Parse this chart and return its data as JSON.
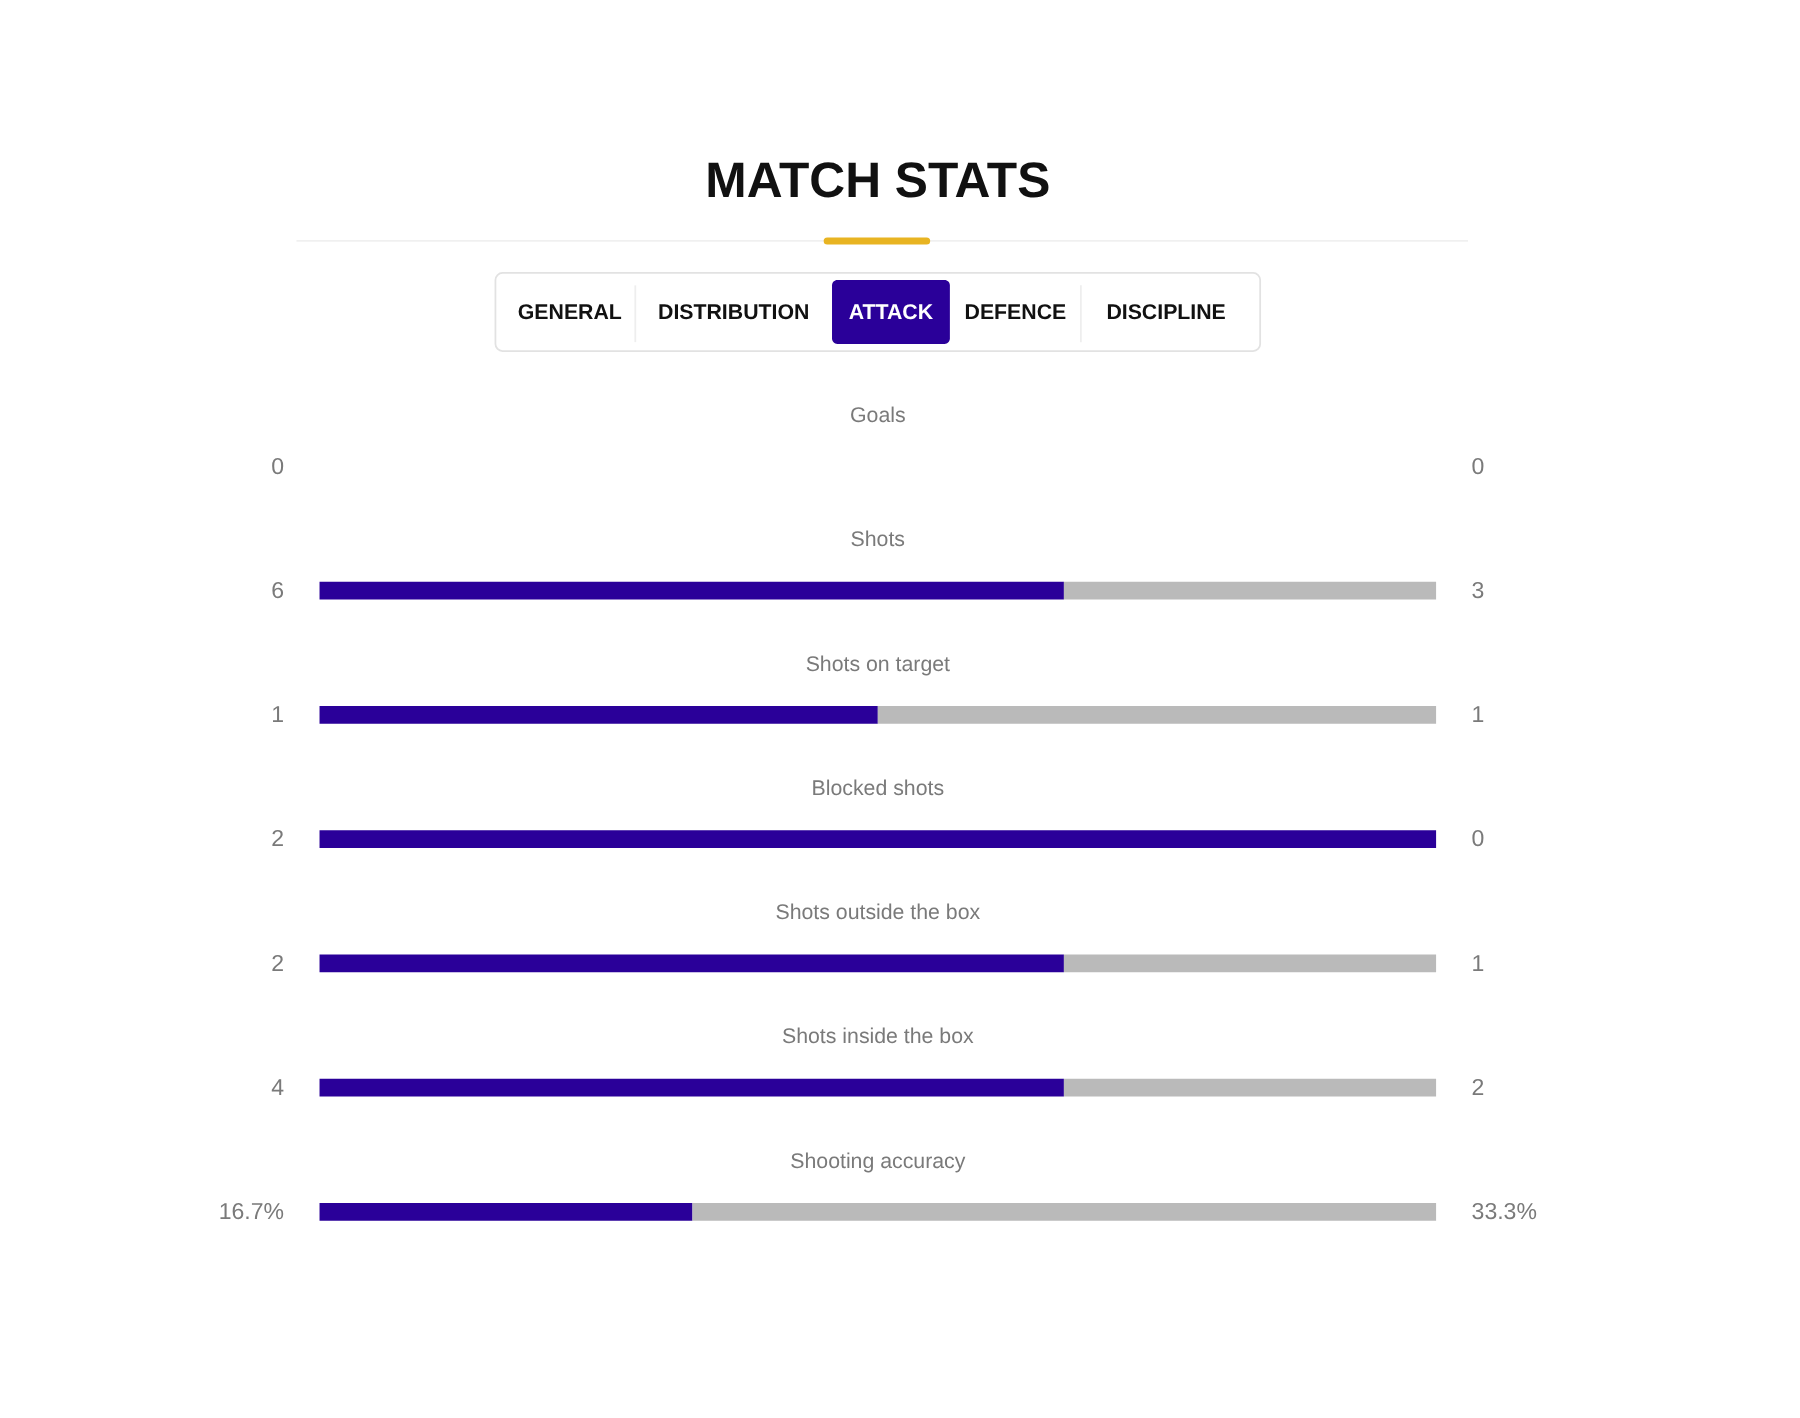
{
  "chart_data": [
    {
      "type": "other",
      "title": "MATCH STATS",
      "annotations": [
        "GENERAL",
        "DISTRIBUTION",
        "ATTACK",
        "DEFENCE",
        "DISCIPLINE"
      ]
    },
    {
      "type": "bar",
      "orientation": "horizontal",
      "stacked": true,
      "categories": [
        "Goals",
        "Shots"
      ],
      "xlim": [
        0,
        9
      ],
      "tick_labels": "y",
      "data_labels": true,
      "series": [
        {
          "color": "#2a0099",
          "values": [
            0,
            6
          ]
        },
        {
          "color": "#bababa",
          "values": [
            0,
            3
          ]
        }
      ]
    },
    {
      "type": "bar",
      "orientation": "horizontal",
      "stacked": true,
      "categories": [
        "Shots on target",
        "Blocked shots"
      ],
      "xlim": [
        0,
        2
      ],
      "tick_labels": "y",
      "data_labels": true,
      "series": [
        {
          "color": "#2a0099",
          "values": [
            1,
            2
          ]
        },
        {
          "color": "#bababa",
          "values": [
            1,
            0
          ]
        }
      ]
    },
    {
      "type": "bar",
      "orientation": "horizontal",
      "stacked": true,
      "categories": [
        "Shots outside the box"
      ],
      "xlim": [
        0,
        3
      ],
      "tick_labels": "y",
      "data_labels": true,
      "series": [
        {
          "color": "#2a0099",
          "values": [
            2
          ]
        },
        {
          "color": "#bababa",
          "values": [
            1
          ]
        }
      ]
    },
    {
      "type": "bar",
      "orientation": "horizontal",
      "stacked": true,
      "categories": [
        "Shots inside the box"
      ],
      "xlim": [
        0,
        6
      ],
      "tick_labels": "y",
      "data_labels": true,
      "series": [
        {
          "color": "#2a0099",
          "values": [
            4
          ]
        },
        {
          "color": "#bababa",
          "values": [
            2
          ]
        }
      ]
    },
    {
      "type": "bar",
      "orientation": "horizontal",
      "stacked": true,
      "categories": [
        "Shooting accuracy"
      ],
      "xlim": [
        0,
        50
      ],
      "tick_labels": "y",
      "series": [
        {
          "color": "#2a0099",
          "values": [
            16.7
          ],
          "value_labels": [
            "16.7%"
          ]
        },
        {
          "color": "#bababa",
          "values": [
            33.3
          ],
          "value_labels": [
            "33.3%"
          ]
        }
      ]
    }
  ]
}
